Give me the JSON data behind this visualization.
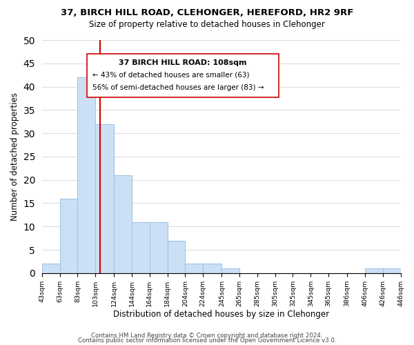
{
  "title": "37, BIRCH HILL ROAD, CLEHONGER, HEREFORD, HR2 9RF",
  "subtitle": "Size of property relative to detached houses in Clehonger",
  "xlabel": "Distribution of detached houses by size in Clehonger",
  "ylabel": "Number of detached properties",
  "bar_edges": [
    43,
    63,
    83,
    103,
    124,
    144,
    164,
    184,
    204,
    224,
    245,
    265,
    285,
    305,
    325,
    345,
    365,
    386,
    406,
    426,
    446
  ],
  "bar_heights": [
    2,
    16,
    42,
    32,
    21,
    11,
    11,
    7,
    2,
    2,
    1,
    0,
    0,
    0,
    0,
    0,
    0,
    0,
    1,
    1
  ],
  "bar_color": "#cce0f5",
  "bar_edgecolor": "#a0c4e8",
  "vline_x": 108,
  "vline_color": "#cc0000",
  "ylim": [
    0,
    50
  ],
  "yticks": [
    0,
    5,
    10,
    15,
    20,
    25,
    30,
    35,
    40,
    45,
    50
  ],
  "annotation_title": "37 BIRCH HILL ROAD: 108sqm",
  "annotation_line1": "← 43% of detached houses are smaller (63)",
  "annotation_line2": "56% of semi-detached houses are larger (83) →",
  "footer1": "Contains HM Land Registry data © Crown copyright and database right 2024.",
  "footer2": "Contains public sector information licensed under the Open Government Licence v3.0.",
  "tick_labels": [
    "43sqm",
    "63sqm",
    "83sqm",
    "103sqm",
    "124sqm",
    "144sqm",
    "164sqm",
    "184sqm",
    "204sqm",
    "224sqm",
    "245sqm",
    "265sqm",
    "285sqm",
    "305sqm",
    "325sqm",
    "345sqm",
    "365sqm",
    "386sqm",
    "406sqm",
    "426sqm",
    "446sqm"
  ],
  "background_color": "#ffffff",
  "grid_color": "#dddddd"
}
